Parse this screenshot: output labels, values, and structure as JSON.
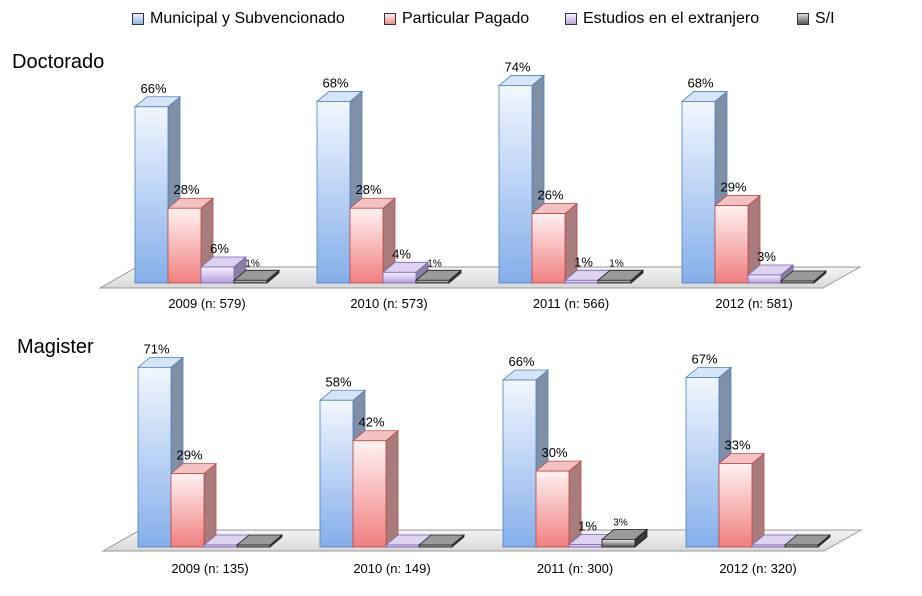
{
  "chart_data": {
    "type": "bar",
    "legend_position": "top",
    "grid": false,
    "series": [
      {
        "name": "Municipal y Subvencionado",
        "color": "#8fb4e8"
      },
      {
        "name": "Particular Pagado",
        "color": "#f08a8a"
      },
      {
        "name": "Estudios en el extranjero",
        "color": "#b9a3dd"
      },
      {
        "name": "S/I",
        "color": "#5a5a5a"
      }
    ],
    "panels": [
      {
        "title": "Doctorado",
        "ylim": [
          0,
          100
        ],
        "categories": [
          "2009 (n: 579)",
          "2010 (n: 573)",
          "2011 (n: 566)",
          "2012 (n: 581)"
        ],
        "values": [
          [
            66,
            28,
            6,
            1
          ],
          [
            68,
            28,
            4,
            1
          ],
          [
            74,
            26,
            1,
            1
          ],
          [
            68,
            29,
            3,
            0
          ]
        ],
        "labels": [
          [
            "66%",
            "28%",
            "6%",
            "1%"
          ],
          [
            "68%",
            "28%",
            "4%",
            "1%"
          ],
          [
            "74%",
            "26%",
            "1%",
            "1%"
          ],
          [
            "68%",
            "29%",
            "3%",
            ""
          ]
        ]
      },
      {
        "title": "Magister",
        "ylim": [
          0,
          100
        ],
        "categories": [
          "2009 (n: 135)",
          "2010 (n: 149)",
          "2011 (n: 300)",
          "2012 (n: 320)"
        ],
        "values": [
          [
            71,
            29,
            0,
            0
          ],
          [
            58,
            42,
            0,
            0
          ],
          [
            66,
            30,
            1,
            3
          ],
          [
            67,
            33,
            0,
            0
          ]
        ],
        "labels": [
          [
            "71%",
            "29%",
            "",
            ""
          ],
          [
            "58%",
            "42%",
            "",
            ""
          ],
          [
            "66%",
            "30%",
            "1%",
            "3%"
          ],
          [
            "67%",
            "33%",
            "",
            ""
          ]
        ]
      }
    ]
  }
}
